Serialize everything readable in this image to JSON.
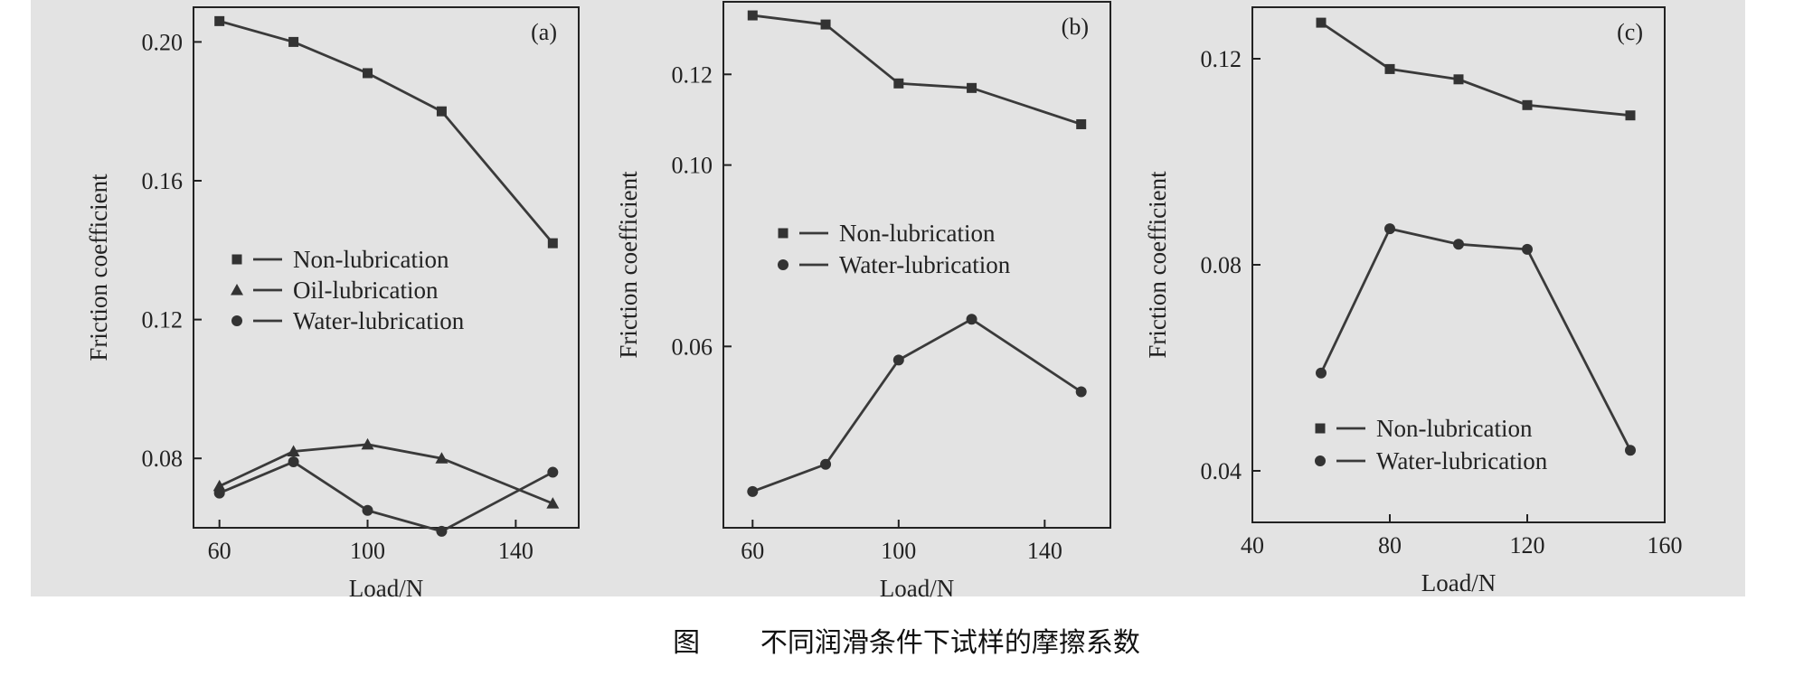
{
  "caption": "图       不同润滑条件下试样的摩擦系数",
  "chart_data": [
    {
      "type": "line",
      "panel_label": "(a)",
      "xlabel": "Load/N",
      "ylabel": "Friction coefficient",
      "xlim": [
        53,
        157
      ],
      "ylim": [
        0.06,
        0.21
      ],
      "xticks": [
        60,
        100,
        140
      ],
      "xtick_labels": [
        "60",
        "100",
        "140"
      ],
      "yticks": [
        0.08,
        0.12,
        0.16,
        0.2
      ],
      "ytick_labels": [
        "0.08",
        "0.12",
        "0.16",
        "0.20"
      ],
      "legend_position": "center-left",
      "series": [
        {
          "name": "Non-lubrication",
          "marker": "square",
          "x": [
            60,
            80,
            100,
            120,
            150
          ],
          "y": [
            0.206,
            0.2,
            0.191,
            0.18,
            0.142
          ]
        },
        {
          "name": "Oil-lubrication",
          "marker": "triangle",
          "x": [
            60,
            80,
            100,
            120,
            150
          ],
          "y": [
            0.072,
            0.082,
            0.084,
            0.08,
            0.067
          ]
        },
        {
          "name": "Water-lubrication",
          "marker": "circle",
          "x": [
            60,
            80,
            100,
            120,
            150
          ],
          "y": [
            0.07,
            0.079,
            0.065,
            0.059,
            0.076
          ]
        }
      ]
    },
    {
      "type": "line",
      "panel_label": "(b)",
      "xlabel": "Load/N",
      "ylabel": "Friction coefficient",
      "xlim": [
        52,
        158
      ],
      "ylim": [
        0.02,
        0.136
      ],
      "xticks": [
        60,
        100,
        140
      ],
      "xtick_labels": [
        "60",
        "100",
        "140"
      ],
      "yticks": [
        0.06,
        0.1,
        0.12
      ],
      "ytick_labels": [
        "0.06",
        "0.10",
        "0.12"
      ],
      "legend_position": "center",
      "series": [
        {
          "name": "Non-lubrication",
          "marker": "square",
          "x": [
            60,
            80,
            100,
            120,
            150
          ],
          "y": [
            0.133,
            0.131,
            0.118,
            0.117,
            0.109
          ]
        },
        {
          "name": "Water-lubrication",
          "marker": "circle",
          "x": [
            60,
            80,
            100,
            120,
            150
          ],
          "y": [
            0.028,
            0.034,
            0.057,
            0.066,
            0.05
          ]
        }
      ]
    },
    {
      "type": "line",
      "panel_label": "(c)",
      "xlabel": "Load/N",
      "ylabel": "Friction coefficient",
      "xlim": [
        40,
        160
      ],
      "ylim": [
        0.03,
        0.13
      ],
      "xticks": [
        40,
        80,
        120,
        160
      ],
      "xtick_labels": [
        "40",
        "80",
        "120",
        "160"
      ],
      "yticks": [
        0.04,
        0.08,
        0.12
      ],
      "ytick_labels": [
        "0.04",
        "0.08",
        "0.12"
      ],
      "legend_position": "bottom-right",
      "series": [
        {
          "name": "Non-lubrication",
          "marker": "square",
          "x": [
            60,
            80,
            100,
            120,
            150
          ],
          "y": [
            0.127,
            0.118,
            0.116,
            0.111,
            0.109
          ]
        },
        {
          "name": "Water-lubrication",
          "marker": "circle",
          "x": [
            60,
            80,
            100,
            120,
            150
          ],
          "y": [
            0.059,
            0.087,
            0.084,
            0.083,
            0.044
          ]
        }
      ]
    }
  ]
}
